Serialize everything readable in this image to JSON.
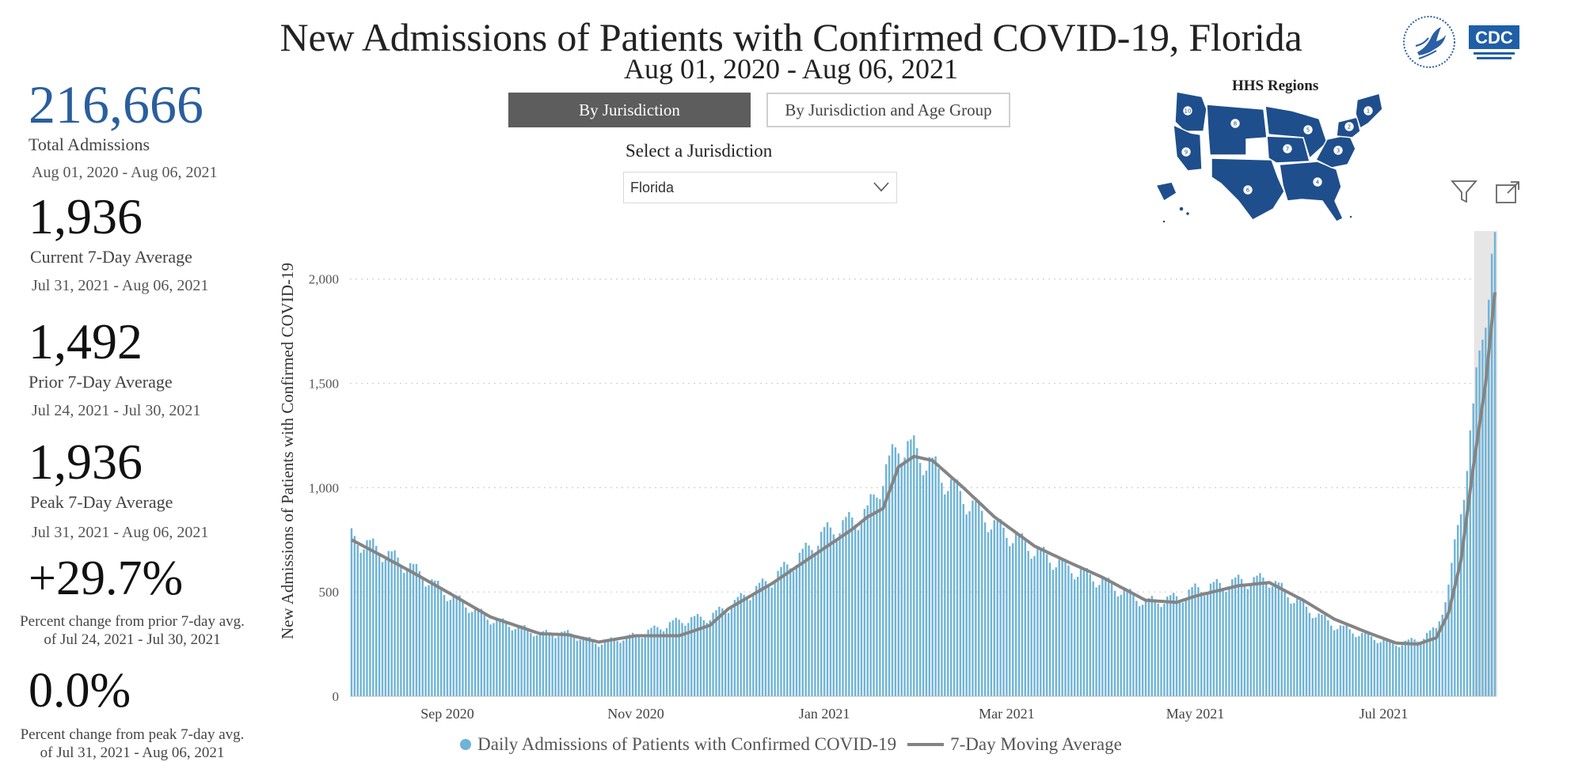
{
  "header": {
    "title": "New Admissions of Patients with Confirmed COVID-19, Florida",
    "subtitle": "Aug 01, 2020 - Aug 06, 2021"
  },
  "toggles": {
    "by_jurisdiction": "By Jurisdiction",
    "by_jurisdiction_age": "By Jurisdiction and Age Group",
    "active": "by_jurisdiction"
  },
  "jurisdiction": {
    "label": "Select a Jurisdiction",
    "selected": "Florida"
  },
  "kpis": {
    "total": {
      "value": "216,666",
      "label": "Total Admissions",
      "dates": "Aug 01, 2020 - Aug 06, 2021"
    },
    "current": {
      "value": "1,936",
      "label": "Current 7-Day Average",
      "dates": "Jul 31, 2021 - Aug 06, 2021"
    },
    "prior": {
      "value": "1,492",
      "label": "Prior 7-Day Average",
      "dates": "Jul 24, 2021 - Jul 30, 2021"
    },
    "peak": {
      "value": "1,936",
      "label": "Peak 7-Day Average",
      "dates": "Jul 31, 2021 - Aug 06, 2021"
    },
    "pct_prior": {
      "value": "+29.7%",
      "note": "Percent change from prior 7-day avg. of Jul 24, 2021 - Jul 30, 2021"
    },
    "pct_peak": {
      "value": "0.0%",
      "note": "Percent change from peak 7-day avg. of Jul 31, 2021 - Aug 06, 2021"
    }
  },
  "map": {
    "title": "HHS Regions",
    "region_labels": [
      "10",
      "8",
      "5",
      "7",
      "1",
      "2",
      "3",
      "9",
      "4",
      "6"
    ]
  },
  "icons": [
    "filter-icon",
    "expand-icon",
    "hhs-logo",
    "cdc-logo",
    "chevron-down-icon"
  ],
  "logo_text": {
    "cdc": "CDC"
  },
  "colors": {
    "bar": "#6fb3d6",
    "line": "#848484",
    "kpi_total": "#2a5e9e",
    "button_active": "#5d5d5d",
    "map": "#1f4e8c",
    "highlight": "#e6e6e6"
  },
  "chart_data": {
    "type": "bar",
    "ylabel": "New Admissions of Patients with Confirmed COVID-19",
    "ylim": [
      0,
      2200
    ],
    "yticks": [
      0,
      500,
      1000,
      1500,
      2000
    ],
    "ytick_labels": [
      "0",
      "500",
      "1,000",
      "1,500",
      "2,000"
    ],
    "x_start": "2020-08-01",
    "x_end": "2021-08-06",
    "xticks": [
      {
        "date": "2020-09-01",
        "label": "Sep 2020"
      },
      {
        "date": "2020-11-01",
        "label": "Nov 2020"
      },
      {
        "date": "2021-01-01",
        "label": "Jan 2021"
      },
      {
        "date": "2021-03-01",
        "label": "Mar 2021"
      },
      {
        "date": "2021-05-01",
        "label": "May 2021"
      },
      {
        "date": "2021-07-01",
        "label": "Jul 2021"
      }
    ],
    "highlight_range": [
      "2021-07-31",
      "2021-08-06"
    ],
    "legend": [
      "Daily Admissions of Patients with Confirmed COVID-19",
      "7-Day Moving Average"
    ],
    "series": [
      {
        "name": "7-Day Moving Average",
        "type": "line",
        "points": [
          {
            "date": "2020-08-01",
            "value": 750
          },
          {
            "date": "2020-08-10",
            "value": 680
          },
          {
            "date": "2020-08-20",
            "value": 600
          },
          {
            "date": "2020-09-01",
            "value": 500
          },
          {
            "date": "2020-09-15",
            "value": 380
          },
          {
            "date": "2020-10-01",
            "value": 300
          },
          {
            "date": "2020-10-10",
            "value": 295
          },
          {
            "date": "2020-10-20",
            "value": 260
          },
          {
            "date": "2020-11-01",
            "value": 290
          },
          {
            "date": "2020-11-15",
            "value": 290
          },
          {
            "date": "2020-11-25",
            "value": 340
          },
          {
            "date": "2020-12-01",
            "value": 420
          },
          {
            "date": "2020-12-15",
            "value": 540
          },
          {
            "date": "2020-12-25",
            "value": 640
          },
          {
            "date": "2021-01-01",
            "value": 710
          },
          {
            "date": "2021-01-10",
            "value": 800
          },
          {
            "date": "2021-01-15",
            "value": 860
          },
          {
            "date": "2021-01-20",
            "value": 900
          },
          {
            "date": "2021-01-25",
            "value": 1100
          },
          {
            "date": "2021-01-30",
            "value": 1150
          },
          {
            "date": "2021-02-05",
            "value": 1130
          },
          {
            "date": "2021-02-15",
            "value": 1000
          },
          {
            "date": "2021-02-25",
            "value": 860
          },
          {
            "date": "2021-03-10",
            "value": 720
          },
          {
            "date": "2021-03-20",
            "value": 650
          },
          {
            "date": "2021-04-01",
            "value": 570
          },
          {
            "date": "2021-04-15",
            "value": 460
          },
          {
            "date": "2021-04-25",
            "value": 450
          },
          {
            "date": "2021-05-01",
            "value": 480
          },
          {
            "date": "2021-05-15",
            "value": 530
          },
          {
            "date": "2021-05-25",
            "value": 545
          },
          {
            "date": "2021-06-05",
            "value": 460
          },
          {
            "date": "2021-06-15",
            "value": 370
          },
          {
            "date": "2021-06-25",
            "value": 310
          },
          {
            "date": "2021-07-05",
            "value": 255
          },
          {
            "date": "2021-07-12",
            "value": 250
          },
          {
            "date": "2021-07-18",
            "value": 280
          },
          {
            "date": "2021-07-22",
            "value": 400
          },
          {
            "date": "2021-07-26",
            "value": 650
          },
          {
            "date": "2021-07-30",
            "value": 1100
          },
          {
            "date": "2021-08-03",
            "value": 1500
          },
          {
            "date": "2021-08-06",
            "value": 1936
          }
        ]
      },
      {
        "name": "Daily Admissions of Patients with Confirmed COVID-19",
        "type": "bar",
        "points": [
          {
            "date": "2020-08-01",
            "value": 760
          },
          {
            "date": "2020-08-10",
            "value": 700
          },
          {
            "date": "2020-08-20",
            "value": 620
          },
          {
            "date": "2020-09-01",
            "value": 490
          },
          {
            "date": "2020-09-15",
            "value": 370
          },
          {
            "date": "2020-10-01",
            "value": 300
          },
          {
            "date": "2020-10-10",
            "value": 300
          },
          {
            "date": "2020-10-20",
            "value": 255
          },
          {
            "date": "2020-11-01",
            "value": 290
          },
          {
            "date": "2020-11-15",
            "value": 360
          },
          {
            "date": "2020-11-25",
            "value": 380
          },
          {
            "date": "2020-12-01",
            "value": 430
          },
          {
            "date": "2020-12-15",
            "value": 560
          },
          {
            "date": "2020-12-25",
            "value": 680
          },
          {
            "date": "2021-01-01",
            "value": 780
          },
          {
            "date": "2021-01-10",
            "value": 840
          },
          {
            "date": "2021-01-15",
            "value": 880
          },
          {
            "date": "2021-01-20",
            "value": 1050
          },
          {
            "date": "2021-01-25",
            "value": 1200
          },
          {
            "date": "2021-01-30",
            "value": 1180
          },
          {
            "date": "2021-02-05",
            "value": 1100
          },
          {
            "date": "2021-02-15",
            "value": 950
          },
          {
            "date": "2021-02-25",
            "value": 820
          },
          {
            "date": "2021-03-10",
            "value": 700
          },
          {
            "date": "2021-03-20",
            "value": 620
          },
          {
            "date": "2021-04-01",
            "value": 550
          },
          {
            "date": "2021-04-15",
            "value": 450
          },
          {
            "date": "2021-04-25",
            "value": 470
          },
          {
            "date": "2021-05-01",
            "value": 510
          },
          {
            "date": "2021-05-15",
            "value": 550
          },
          {
            "date": "2021-05-25",
            "value": 560
          },
          {
            "date": "2021-06-05",
            "value": 430
          },
          {
            "date": "2021-06-15",
            "value": 340
          },
          {
            "date": "2021-06-25",
            "value": 290
          },
          {
            "date": "2021-07-05",
            "value": 250
          },
          {
            "date": "2021-07-12",
            "value": 270
          },
          {
            "date": "2021-07-18",
            "value": 320
          },
          {
            "date": "2021-07-22",
            "value": 520
          },
          {
            "date": "2021-07-26",
            "value": 900
          },
          {
            "date": "2021-07-30",
            "value": 1350
          },
          {
            "date": "2021-08-03",
            "value": 1900
          },
          {
            "date": "2021-08-06",
            "value": 2140
          }
        ]
      }
    ]
  }
}
